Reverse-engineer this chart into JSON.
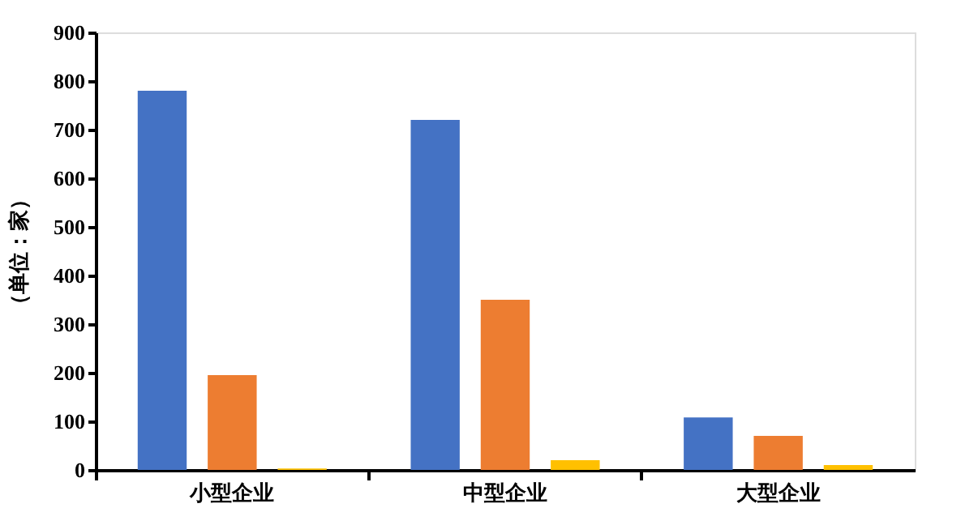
{
  "chart_data": {
    "type": "bar",
    "ylabel": "（单位：家）",
    "categories": [
      "小型企业",
      "中型企业",
      "大型企业"
    ],
    "series": [
      {
        "color": "#4472c4",
        "values": [
          780,
          720,
          108
        ]
      },
      {
        "color": "#ed7d31",
        "values": [
          195,
          350,
          70
        ]
      },
      {
        "color": "#ffc000",
        "values": [
          3,
          20,
          10
        ]
      }
    ],
    "ylim": [
      0,
      900
    ],
    "yticks": [
      0,
      100,
      200,
      300,
      400,
      500,
      600,
      700,
      800,
      900
    ],
    "grid": false,
    "legend": false
  }
}
